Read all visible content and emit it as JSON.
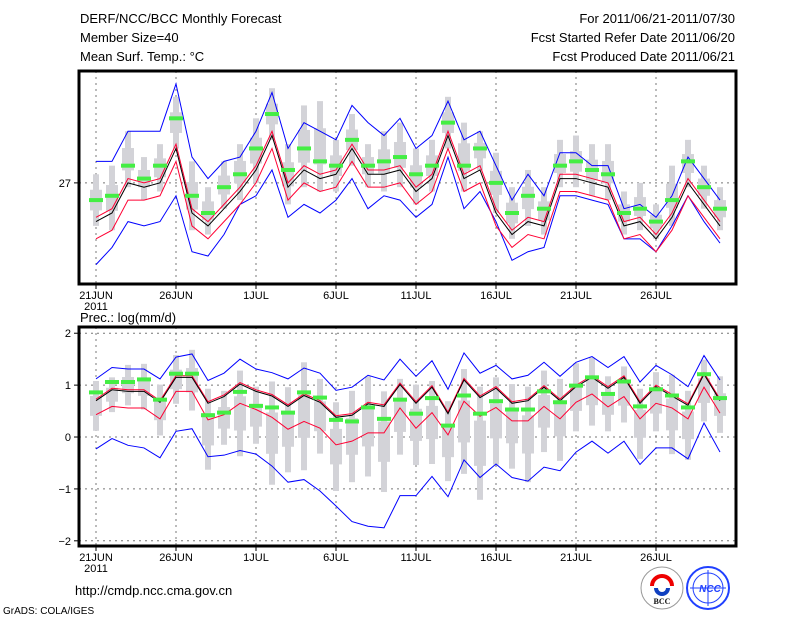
{
  "header": {
    "title": "DERF/NCC/BCC Monthly Forecast",
    "member_size": "Member Size=40",
    "variable": "Mean Surf. Temp.: °C",
    "period": "For 2011/06/21-2011/07/30",
    "start_date": "Fcst Started Refer Date 2011/06/20",
    "produced_date": "Fcst Produced Date 2011/06/21"
  },
  "footer": {
    "url": "http://cmdp.ncc.cma.gov.cn",
    "credit": "GrADS: COLA/IGES",
    "logo_bcc": "BCC",
    "logo_ncc": "NCC"
  },
  "colors": {
    "mean": "#000000",
    "red": "#ff0033",
    "blue": "#0000ff",
    "green": "#44ee44",
    "bar": "#d3d3d8"
  },
  "chart_data": [
    {
      "type": "line",
      "title": "Mean Surf. Temp.: °C",
      "x_tick_labels": [
        "21JUN",
        "26JUN",
        "1JUL",
        "6JUL",
        "11JUL",
        "16JUL",
        "21JUL",
        "26JUL"
      ],
      "x_tick_index": [
        0,
        5,
        10,
        15,
        20,
        25,
        30,
        35
      ],
      "year_label": "2011",
      "y_ticks": [
        27
      ],
      "y_tick_labels": [
        "27"
      ],
      "ylim": [
        24.65,
        29.6
      ],
      "grid": true,
      "series": {
        "mean": [
          26.1,
          26.3,
          27.0,
          26.9,
          27.0,
          27.8,
          26.3,
          26.0,
          26.4,
          26.8,
          27.3,
          28.1,
          26.9,
          27.3,
          27.1,
          27.2,
          27.8,
          27.2,
          27.2,
          27.3,
          26.8,
          27.1,
          28.1,
          27.1,
          27.3,
          26.3,
          25.8,
          26.1,
          26.0,
          27.1,
          27.1,
          27.0,
          26.9,
          26.0,
          26.1,
          25.7,
          26.2,
          27.0,
          26.5,
          26.0
        ],
        "red_upper": [
          26.2,
          26.4,
          27.1,
          27.0,
          27.1,
          27.9,
          26.4,
          26.1,
          26.5,
          26.9,
          27.4,
          28.2,
          27.0,
          27.4,
          27.2,
          27.3,
          27.9,
          27.3,
          27.3,
          27.4,
          26.9,
          27.2,
          28.2,
          27.2,
          27.4,
          26.4,
          25.9,
          26.2,
          26.1,
          27.2,
          27.2,
          27.1,
          27.0,
          26.1,
          26.2,
          25.8,
          26.3,
          27.1,
          26.6,
          26.1
        ],
        "red_lower": [
          25.7,
          25.9,
          26.6,
          26.6,
          26.7,
          27.5,
          26.0,
          25.7,
          26.1,
          26.5,
          27.0,
          27.8,
          26.6,
          27.0,
          26.8,
          26.9,
          27.5,
          26.9,
          26.9,
          27.0,
          26.5,
          26.8,
          27.8,
          26.8,
          27.0,
          26.0,
          25.5,
          25.8,
          25.7,
          26.8,
          26.8,
          26.7,
          26.6,
          25.7,
          25.8,
          25.4,
          25.9,
          26.7,
          26.2,
          25.7
        ],
        "blue_upper": [
          27.5,
          27.5,
          28.2,
          28.2,
          28.2,
          29.3,
          27.6,
          27.1,
          27.5,
          27.6,
          28.2,
          29.1,
          27.8,
          28.4,
          28.2,
          28.0,
          28.8,
          28.4,
          28.1,
          28.5,
          27.8,
          28.1,
          28.9,
          28.0,
          28.2,
          27.4,
          26.6,
          27.2,
          26.7,
          27.7,
          27.7,
          27.4,
          27.4,
          26.4,
          26.5,
          26.2,
          26.7,
          27.6,
          27.1,
          26.6
        ],
        "blue_lower": [
          25.1,
          25.5,
          26.1,
          26.0,
          26.1,
          26.7,
          25.4,
          25.3,
          25.8,
          26.5,
          26.7,
          27.3,
          26.2,
          26.5,
          26.3,
          26.6,
          27.1,
          26.4,
          26.7,
          26.6,
          26.2,
          26.5,
          27.6,
          26.4,
          26.8,
          26.1,
          25.2,
          25.4,
          25.5,
          26.7,
          26.7,
          26.6,
          26.5,
          25.7,
          25.7,
          25.4,
          26.0,
          26.7,
          26.1,
          25.6
        ],
        "green": [
          26.6,
          26.7,
          27.4,
          27.1,
          27.4,
          28.5,
          26.7,
          26.3,
          26.9,
          27.2,
          27.8,
          28.6,
          27.3,
          27.8,
          27.5,
          27.4,
          28.0,
          27.4,
          27.5,
          27.6,
          27.2,
          27.4,
          28.4,
          27.4,
          27.8,
          27.0,
          26.3,
          26.7,
          26.4,
          27.4,
          27.5,
          27.3,
          27.2,
          26.3,
          26.4,
          26.1,
          26.6,
          27.5,
          26.9,
          26.4
        ],
        "bar_low": [
          26.0,
          25.9,
          26.9,
          26.6,
          26.8,
          27.8,
          25.9,
          25.8,
          26.4,
          26.6,
          27.0,
          28.0,
          26.5,
          26.9,
          26.8,
          26.8,
          27.4,
          26.9,
          26.8,
          26.9,
          26.5,
          26.8,
          27.8,
          26.8,
          27.3,
          26.3,
          25.7,
          26.0,
          25.8,
          26.9,
          26.9,
          26.7,
          26.6,
          25.8,
          25.9,
          25.7,
          26.0,
          26.9,
          26.4,
          25.9
        ],
        "bar_high": [
          27.2,
          27.4,
          28.2,
          27.6,
          27.9,
          29.0,
          27.5,
          26.9,
          27.5,
          27.9,
          28.5,
          29.2,
          27.9,
          28.8,
          28.9,
          28.0,
          28.6,
          27.9,
          28.2,
          28.4,
          27.8,
          28.0,
          29.0,
          28.4,
          28.2,
          27.7,
          26.9,
          27.3,
          26.9,
          28.0,
          28.1,
          27.9,
          27.9,
          26.8,
          27.0,
          26.5,
          27.4,
          28.0,
          27.4,
          26.9
        ]
      }
    },
    {
      "type": "line",
      "title": "Prec.: log(mm/d)",
      "x_tick_labels": [
        "21JUN",
        "26JUN",
        "1JUL",
        "6JUL",
        "11JUL",
        "16JUL",
        "21JUL",
        "26JUL"
      ],
      "x_tick_index": [
        0,
        5,
        10,
        15,
        20,
        25,
        30,
        35
      ],
      "year_label": "2011",
      "y_ticks": [
        -2,
        -1,
        0,
        1,
        2
      ],
      "y_tick_labels": [
        "−2",
        "−1",
        "0",
        "1",
        "2"
      ],
      "ylim": [
        -2.1,
        2.12
      ],
      "grid": true,
      "series": {
        "mean": [
          0.7,
          0.91,
          0.88,
          0.88,
          0.67,
          1.15,
          1.15,
          0.65,
          0.78,
          1.02,
          0.88,
          0.79,
          0.59,
          0.8,
          0.67,
          0.38,
          0.42,
          0.64,
          0.59,
          1.01,
          0.65,
          0.96,
          0.45,
          1.1,
          0.76,
          0.94,
          0.65,
          0.7,
          0.96,
          0.7,
          0.97,
          1.15,
          0.94,
          1.15,
          0.65,
          0.97,
          0.79,
          0.61,
          1.21,
          0.7
        ],
        "red_upper": [
          0.73,
          0.94,
          0.91,
          0.91,
          0.7,
          1.18,
          1.18,
          0.68,
          0.81,
          1.05,
          0.91,
          0.82,
          0.62,
          0.83,
          0.7,
          0.41,
          0.45,
          0.67,
          0.62,
          1.04,
          0.68,
          0.99,
          0.48,
          1.13,
          0.79,
          0.97,
          0.68,
          0.73,
          0.99,
          0.73,
          1.0,
          1.18,
          0.97,
          1.18,
          0.68,
          1.0,
          0.82,
          0.64,
          1.24,
          0.73
        ],
        "red_lower": [
          0.43,
          0.59,
          0.56,
          0.56,
          0.35,
          0.88,
          0.88,
          0.33,
          0.43,
          0.65,
          0.53,
          0.38,
          0.15,
          0.3,
          0.17,
          -0.15,
          -0.08,
          0.08,
          0.08,
          0.56,
          0.17,
          0.47,
          0.04,
          0.69,
          0.4,
          0.57,
          0.31,
          0.31,
          0.59,
          0.35,
          0.67,
          0.83,
          0.58,
          0.78,
          0.35,
          0.65,
          0.56,
          0.35,
          0.96,
          0.46
        ],
        "blue_upper": [
          1.12,
          1.34,
          1.31,
          1.31,
          1.12,
          1.54,
          1.6,
          1.09,
          1.23,
          1.5,
          1.31,
          1.24,
          1.12,
          1.33,
          1.23,
          0.9,
          0.96,
          1.19,
          1.1,
          1.5,
          1.17,
          1.47,
          0.92,
          1.62,
          1.23,
          1.38,
          1.12,
          1.19,
          1.44,
          1.17,
          1.44,
          1.55,
          1.34,
          1.55,
          1.06,
          1.38,
          1.2,
          0.97,
          1.57,
          1.1
        ],
        "blue_lower": [
          -0.23,
          -0.03,
          -0.16,
          -0.21,
          -0.4,
          0.11,
          0.16,
          -0.38,
          -0.35,
          -0.26,
          -0.33,
          -0.56,
          -0.87,
          -0.82,
          -1.04,
          -1.33,
          -1.63,
          -1.72,
          -1.75,
          -1.13,
          -1.13,
          -0.76,
          -1.15,
          -0.44,
          -0.78,
          -0.52,
          -0.78,
          -0.85,
          -0.58,
          -0.65,
          -0.29,
          -0.08,
          -0.31,
          -0.08,
          -0.53,
          -0.21,
          -0.21,
          -0.42,
          0.27,
          -0.29
        ],
        "green": [
          0.86,
          1.06,
          1.06,
          1.11,
          0.72,
          1.22,
          1.22,
          0.42,
          0.47,
          0.87,
          0.6,
          0.57,
          0.47,
          0.86,
          0.76,
          0.33,
          0.3,
          0.57,
          0.35,
          0.72,
          0.45,
          0.75,
          0.22,
          0.8,
          0.45,
          0.69,
          0.53,
          0.53,
          0.88,
          0.67,
          0.99,
          1.15,
          0.83,
          1.07,
          0.59,
          0.92,
          0.8,
          0.57,
          1.21,
          0.75
        ],
        "bar_low": [
          0.12,
          0.48,
          0.61,
          0.53,
          0.03,
          0.64,
          0.51,
          -0.63,
          -0.15,
          -0.37,
          -0.13,
          -0.92,
          -0.68,
          -0.64,
          -0.32,
          -1.04,
          -0.87,
          -0.76,
          -1.06,
          -0.34,
          -0.54,
          -0.52,
          -0.85,
          -0.71,
          -1.21,
          -0.53,
          -0.61,
          -0.87,
          -0.29,
          -0.46,
          0.11,
          0.22,
          0.11,
          0.28,
          -0.42,
          0.11,
          -0.33,
          -0.44,
          0.3,
          0.08
        ],
        "bar_high": [
          1.08,
          1.15,
          1.39,
          1.41,
          1.01,
          1.58,
          1.68,
          0.93,
          0.89,
          1.28,
          0.97,
          1.07,
          0.96,
          1.44,
          1.12,
          0.67,
          0.89,
          1.17,
          0.88,
          1.12,
          1.01,
          1.08,
          0.69,
          1.31,
          0.97,
          1.15,
          1.02,
          0.97,
          1.28,
          1.12,
          1.42,
          1.53,
          1.17,
          1.36,
          0.93,
          1.25,
          1.2,
          0.89,
          1.49,
          1.17
        ]
      }
    }
  ]
}
